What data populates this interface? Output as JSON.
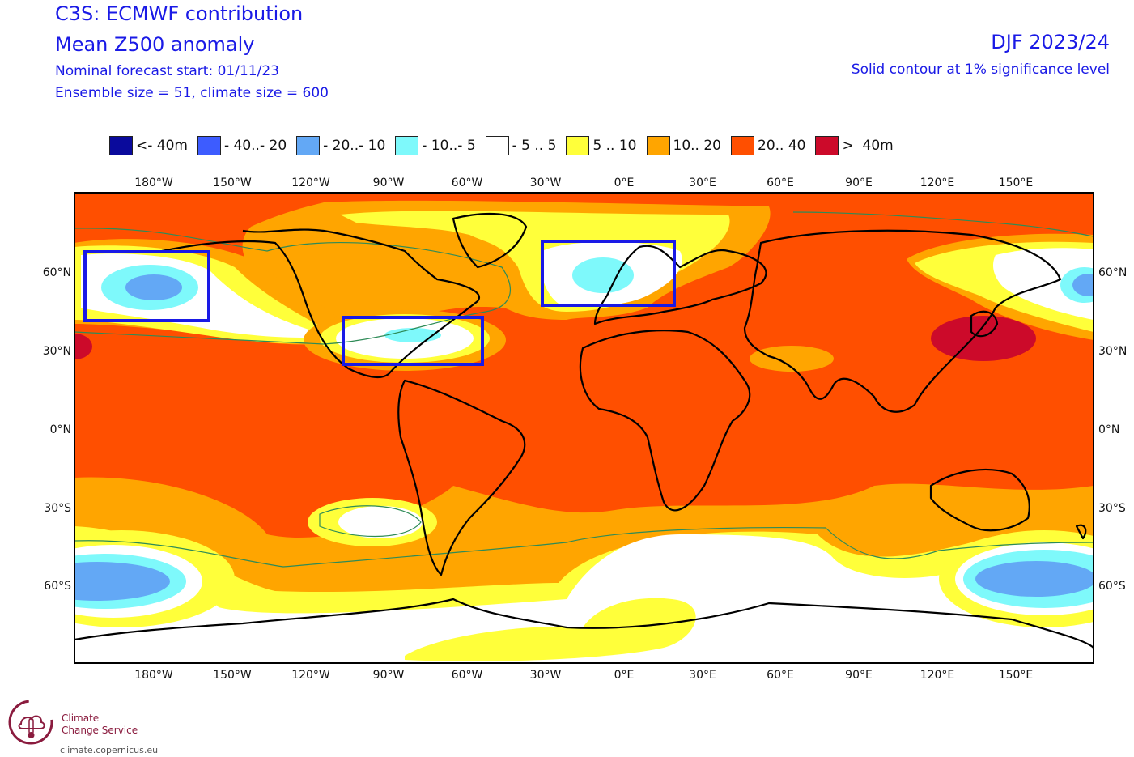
{
  "header": {
    "title_line1": "C3S: ECMWF contribution",
    "title_line2": "Mean Z500 anomaly",
    "forecast_start": "Nominal forecast start: 01/11/23",
    "ensemble": "Ensemble size = 51, climate size = 600",
    "season": "DJF 2023/24",
    "significance": "Solid contour at 1% significance level"
  },
  "legend": [
    {
      "label": "<- 40m",
      "color": "#0a0a9c"
    },
    {
      "label": "- 40..- 20",
      "color": "#3d5cff"
    },
    {
      "label": "- 20..- 10",
      "color": "#63a8f5"
    },
    {
      "label": "- 10..- 5",
      "color": "#7ef9fb"
    },
    {
      "label": "- 5 .. 5",
      "color": "#ffffff"
    },
    {
      "label": "5 .. 10",
      "color": "#ffff3a"
    },
    {
      "label": "10.. 20",
      "color": "#ffa500"
    },
    {
      "label": "20.. 40",
      "color": "#ff4f00"
    },
    {
      "label": ">  40m",
      "color": "#cc0a2a"
    }
  ],
  "map": {
    "longitude_ticks": [
      "180°W",
      "150°W",
      "120°W",
      "90°W",
      "60°W",
      "30°W",
      "0°E",
      "30°E",
      "60°E",
      "90°E",
      "120°E",
      "150°E"
    ],
    "latitude_ticks": [
      "60°N",
      "30°N",
      "0°N",
      "30°S",
      "60°S"
    ],
    "highlight_box_color": "#1a1ae6"
  },
  "logo": {
    "name_line1": "Climate",
    "name_line2": "Change Service",
    "url": "climate.copernicus.eu"
  }
}
